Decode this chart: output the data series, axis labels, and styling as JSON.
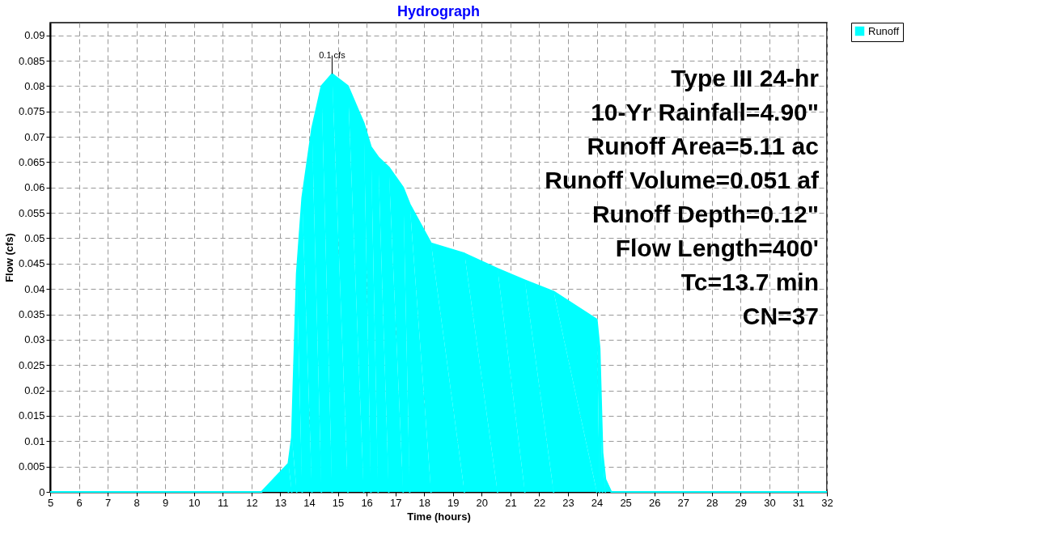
{
  "chart_data": {
    "type": "area",
    "title": "Hydrograph",
    "xlabel": "Time  (hours)",
    "ylabel": "Flow  (cfs)",
    "x": [
      5,
      12.35,
      13.28,
      13.4,
      13.57,
      13.76,
      14.1,
      14.43,
      14.8,
      15.35,
      15.9,
      16.15,
      16.4,
      16.77,
      17.27,
      17.5,
      18.24,
      19.4,
      20.55,
      21.5,
      22.5,
      24.0,
      24.1,
      24.2,
      24.3,
      24.5,
      32
    ],
    "series": [
      {
        "name": "Runoff",
        "color": "#00ffff",
        "values": [
          0,
          0,
          0.0056,
          0.0107,
          0.043,
          0.058,
          0.0716,
          0.08,
          0.0824,
          0.08,
          0.0727,
          0.068,
          0.066,
          0.064,
          0.06,
          0.0567,
          0.049,
          0.047,
          0.044,
          0.0417,
          0.0395,
          0.034,
          0.0283,
          0.0077,
          0.0025,
          0,
          0
        ]
      }
    ],
    "xlim": [
      5,
      32
    ],
    "xticks": [
      5,
      6,
      7,
      8,
      9,
      10,
      11,
      12,
      13,
      14,
      15,
      16,
      17,
      18,
      19,
      20,
      21,
      22,
      23,
      24,
      25,
      26,
      27,
      28,
      29,
      30,
      31,
      32
    ],
    "ylim": [
      0,
      0.0925
    ],
    "yticks": [
      0,
      0.005,
      0.01,
      0.015,
      0.02,
      0.025,
      0.03,
      0.035,
      0.04,
      0.045,
      0.05,
      0.055,
      0.06,
      0.065,
      0.07,
      0.075,
      0.08,
      0.085,
      0.09
    ],
    "grid": true,
    "legend": "top right",
    "line_style": "solid",
    "annotations": [
      {
        "text": "0.1 cfs",
        "x": 14.8,
        "y": 0.0824
      },
      "Type III 24-hr",
      "10-Yr Rainfall=4.90\"",
      "Runoff Area=5.11 ac",
      "Runoff Volume=0.051 af",
      "Runoff Depth=0.12\"",
      "Flow Length=400'",
      "Tc=13.7 min",
      "CN=37"
    ]
  }
}
